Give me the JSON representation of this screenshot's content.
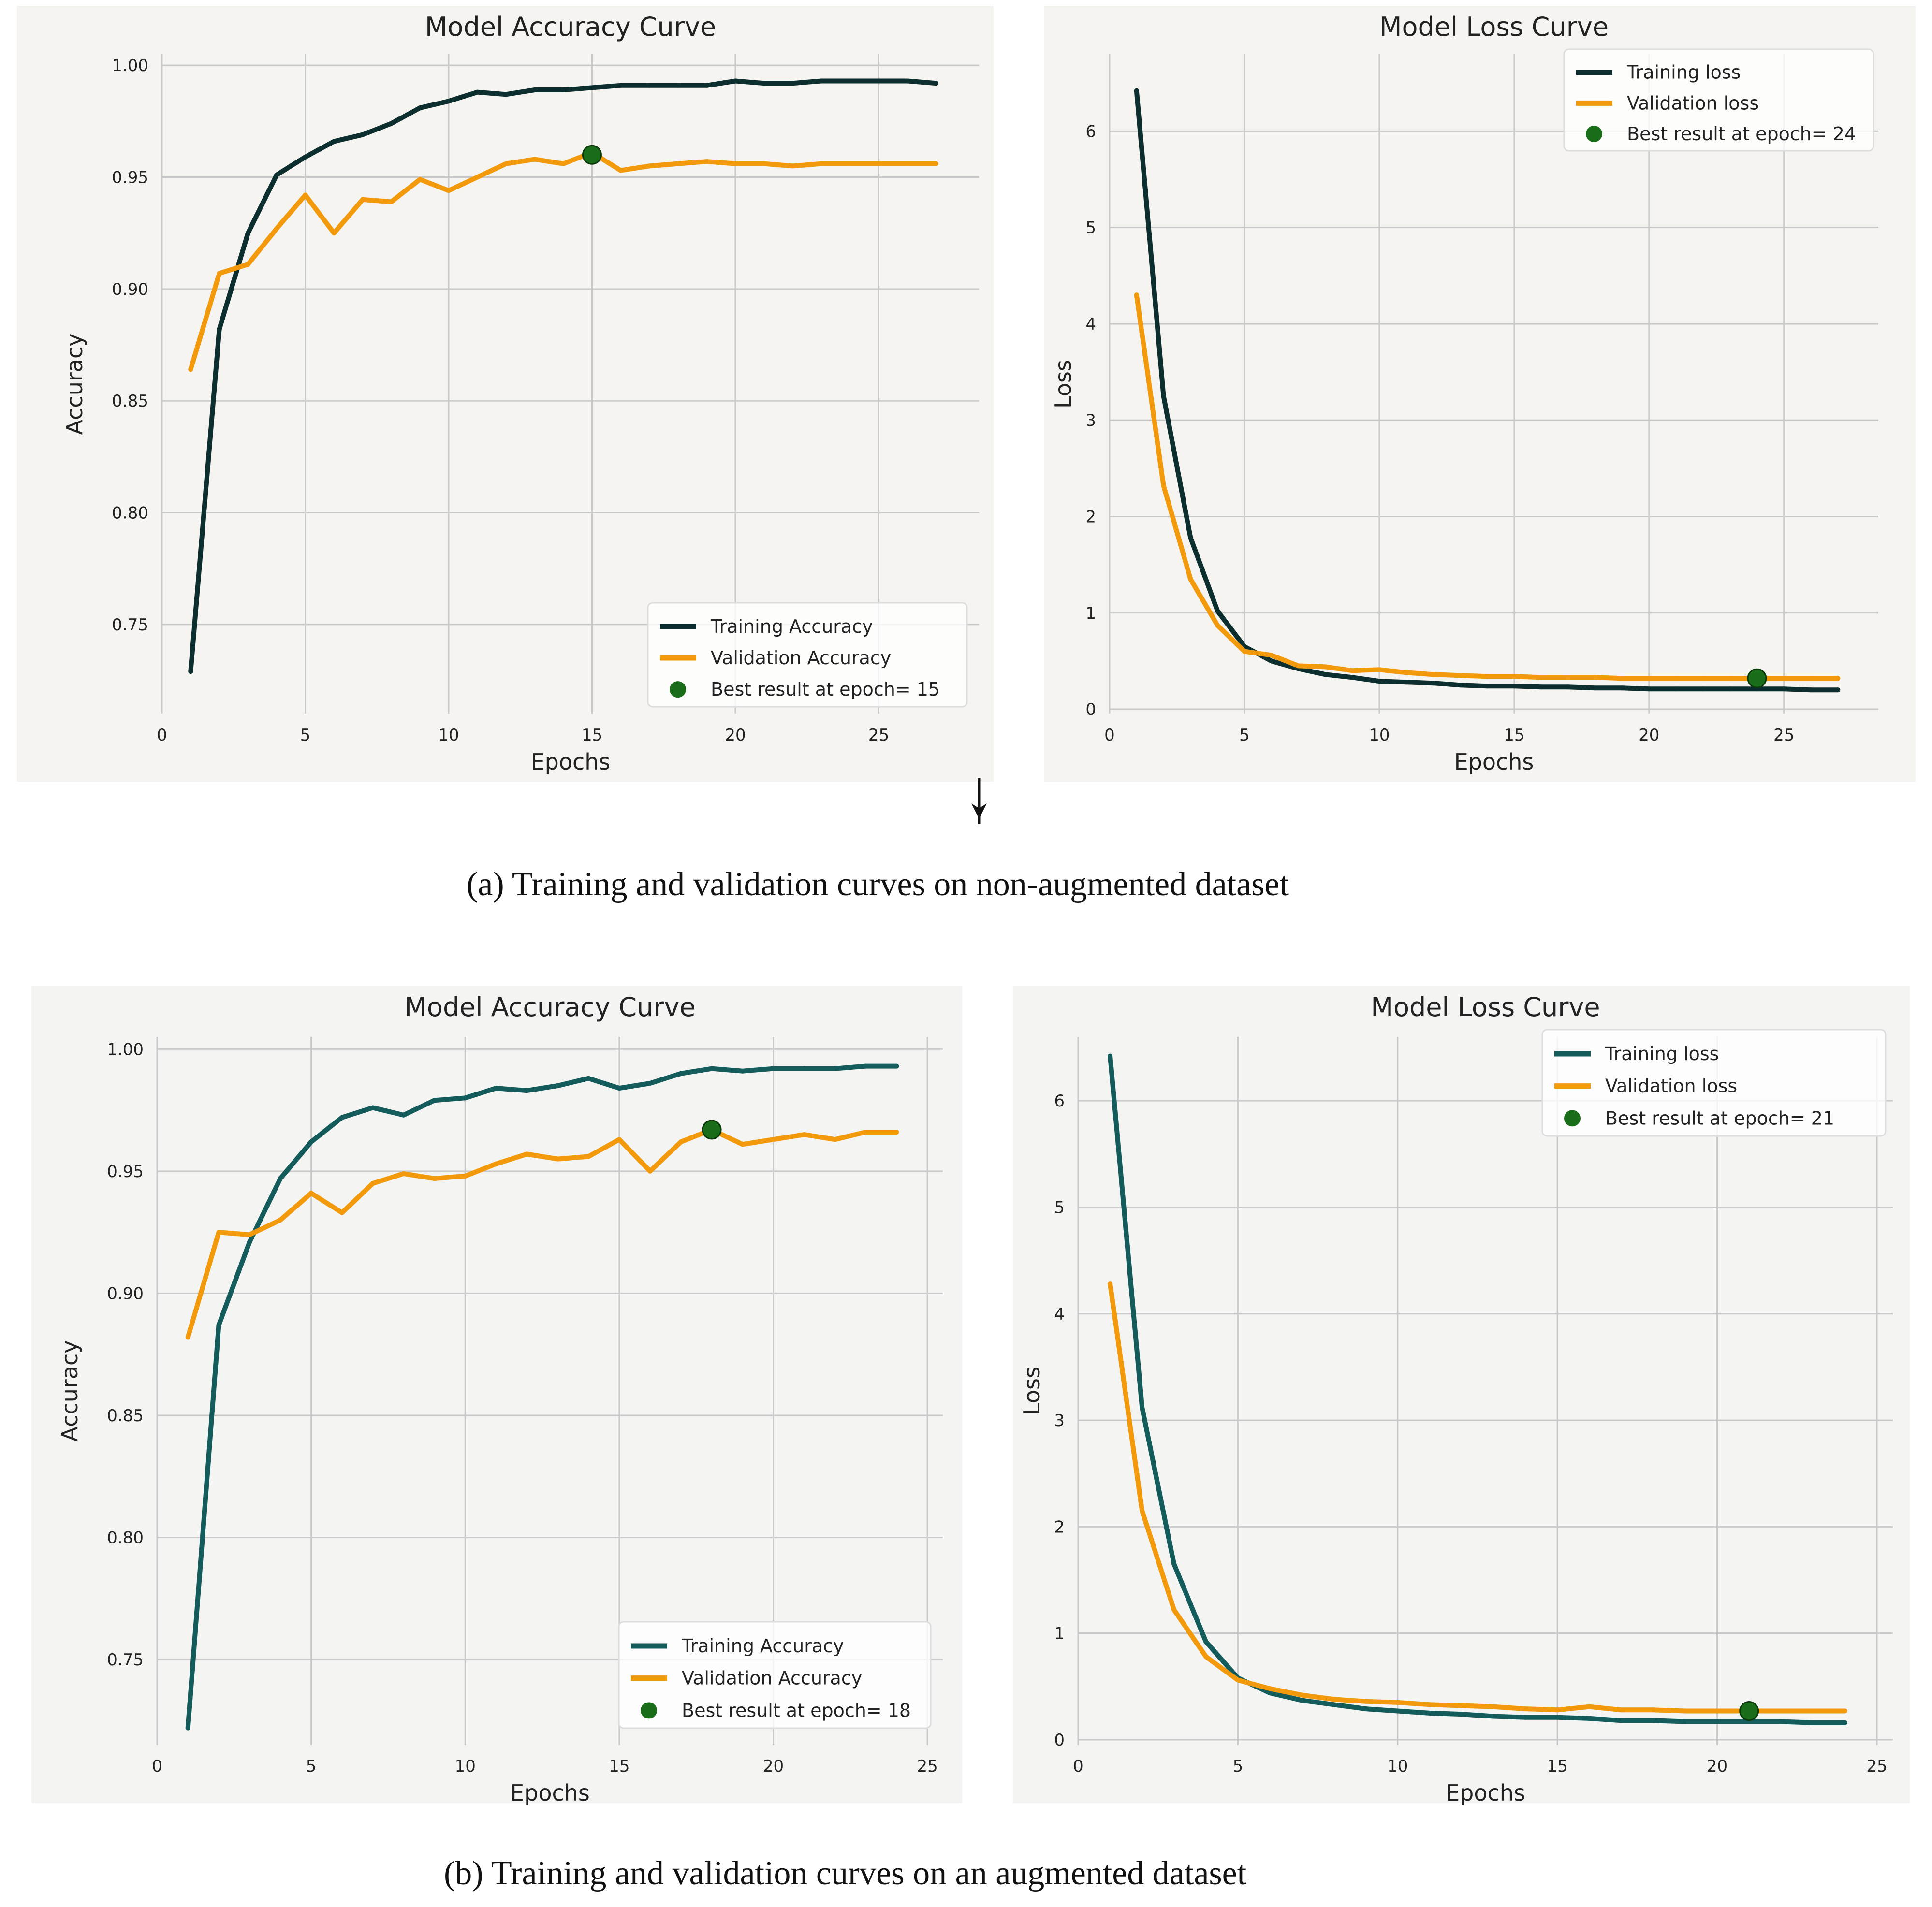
{
  "captions": {
    "a": "(a)  Training and validation curves  on non-augmented dataset",
    "b": "(b)  Training and validation curves on an augmented dataset"
  },
  "colors": {
    "panel_bg": "#f5f4f0",
    "grid": "#c9c9c9",
    "training_a": "#0d2e2e",
    "training_b": "#145c5c",
    "validation": "#f29a0c",
    "best": "#1a6e1a"
  },
  "icons": {
    "down_arrow": "arrow-down-icon"
  },
  "chart_data": [
    {
      "id": "acc_a",
      "type": "line",
      "title": "Model Accuracy Curve",
      "xlabel": "Epochs",
      "ylabel": "Accuracy",
      "xlim": [
        0,
        28.5
      ],
      "ylim": [
        0.71,
        1.005
      ],
      "xticks": [
        0,
        5,
        10,
        15,
        20,
        25
      ],
      "yticks": [
        0.75,
        0.8,
        0.85,
        0.9,
        0.95,
        1.0
      ],
      "ytick_decimals": 2,
      "legend_position": "bottom-right",
      "grid": true,
      "series": [
        {
          "name": "Training Accuracy",
          "color": "#0d2e2e",
          "x": [
            1,
            2,
            3,
            4,
            5,
            6,
            7,
            8,
            9,
            10,
            11,
            12,
            13,
            14,
            15,
            16,
            17,
            18,
            19,
            20,
            21,
            22,
            23,
            24,
            25,
            26,
            27
          ],
          "values": [
            0.729,
            0.882,
            0.925,
            0.951,
            0.959,
            0.966,
            0.969,
            0.974,
            0.981,
            0.984,
            0.988,
            0.987,
            0.989,
            0.989,
            0.99,
            0.991,
            0.991,
            0.991,
            0.991,
            0.993,
            0.992,
            0.992,
            0.993,
            0.993,
            0.993,
            0.993,
            0.992
          ]
        },
        {
          "name": "Validation Accuracy",
          "color": "#f29a0c",
          "x": [
            1,
            2,
            3,
            4,
            5,
            6,
            7,
            8,
            9,
            10,
            11,
            12,
            13,
            14,
            15,
            16,
            17,
            18,
            19,
            20,
            21,
            22,
            23,
            24,
            25,
            26,
            27
          ],
          "values": [
            0.864,
            0.907,
            0.911,
            0.927,
            0.942,
            0.925,
            0.94,
            0.939,
            0.949,
            0.944,
            0.95,
            0.956,
            0.958,
            0.956,
            0.961,
            0.953,
            0.955,
            0.956,
            0.957,
            0.956,
            0.956,
            0.955,
            0.956,
            0.956,
            0.956,
            0.956,
            0.956
          ]
        }
      ],
      "best_point": {
        "label": "Best result at epoch= 15",
        "x": 15,
        "y": 0.96
      }
    },
    {
      "id": "loss_a",
      "type": "line",
      "title": "Model Loss Curve",
      "xlabel": "Epochs",
      "ylabel": "Loss",
      "xlim": [
        0,
        28.5
      ],
      "ylim": [
        -0.05,
        6.8
      ],
      "xticks": [
        0,
        5,
        10,
        15,
        20,
        25
      ],
      "yticks": [
        0,
        1,
        2,
        3,
        4,
        5,
        6
      ],
      "ytick_decimals": 0,
      "legend_position": "top-right",
      "grid": true,
      "series": [
        {
          "name": "Training loss",
          "color": "#0d2e2e",
          "x": [
            1,
            2,
            3,
            4,
            5,
            6,
            7,
            8,
            9,
            10,
            11,
            12,
            13,
            14,
            15,
            16,
            17,
            18,
            19,
            20,
            21,
            22,
            23,
            24,
            25,
            26,
            27
          ],
          "values": [
            6.42,
            3.25,
            1.78,
            1.02,
            0.65,
            0.5,
            0.42,
            0.36,
            0.33,
            0.29,
            0.28,
            0.27,
            0.25,
            0.24,
            0.24,
            0.23,
            0.23,
            0.22,
            0.22,
            0.21,
            0.21,
            0.21,
            0.21,
            0.21,
            0.21,
            0.2,
            0.2
          ]
        },
        {
          "name": "Validation loss",
          "color": "#f29a0c",
          "x": [
            1,
            2,
            3,
            4,
            5,
            6,
            7,
            8,
            9,
            10,
            11,
            12,
            13,
            14,
            15,
            16,
            17,
            18,
            19,
            20,
            21,
            22,
            23,
            24,
            25,
            26,
            27
          ],
          "values": [
            4.3,
            2.32,
            1.35,
            0.87,
            0.6,
            0.56,
            0.45,
            0.44,
            0.4,
            0.41,
            0.38,
            0.36,
            0.35,
            0.34,
            0.34,
            0.33,
            0.33,
            0.33,
            0.32,
            0.32,
            0.32,
            0.32,
            0.32,
            0.32,
            0.32,
            0.32,
            0.32
          ]
        }
      ],
      "best_point": {
        "label": "Best result at epoch= 24",
        "x": 24,
        "y": 0.32
      }
    },
    {
      "id": "acc_b",
      "type": "line",
      "title": "Model Accuracy Curve",
      "xlabel": "Epochs",
      "ylabel": "Accuracy",
      "xlim": [
        0,
        25.5
      ],
      "ylim": [
        0.715,
        1.005
      ],
      "xticks": [
        0,
        5,
        10,
        15,
        20,
        25
      ],
      "yticks": [
        0.75,
        0.8,
        0.85,
        0.9,
        0.95,
        1.0
      ],
      "ytick_decimals": 2,
      "legend_position": "bottom-right",
      "grid": true,
      "series": [
        {
          "name": "Training Accuracy",
          "color": "#145c5c",
          "x": [
            1,
            2,
            3,
            4,
            5,
            6,
            7,
            8,
            9,
            10,
            11,
            12,
            13,
            14,
            15,
            16,
            17,
            18,
            19,
            20,
            21,
            22,
            23,
            24
          ],
          "values": [
            0.722,
            0.887,
            0.921,
            0.947,
            0.962,
            0.972,
            0.976,
            0.973,
            0.979,
            0.98,
            0.984,
            0.983,
            0.985,
            0.988,
            0.984,
            0.986,
            0.99,
            0.992,
            0.991,
            0.992,
            0.992,
            0.992,
            0.993,
            0.993
          ]
        },
        {
          "name": "Validation Accuracy",
          "color": "#f29a0c",
          "x": [
            1,
            2,
            3,
            4,
            5,
            6,
            7,
            8,
            9,
            10,
            11,
            12,
            13,
            14,
            15,
            16,
            17,
            18,
            19,
            20,
            21,
            22,
            23,
            24
          ],
          "values": [
            0.882,
            0.925,
            0.924,
            0.93,
            0.941,
            0.933,
            0.945,
            0.949,
            0.947,
            0.948,
            0.953,
            0.957,
            0.955,
            0.956,
            0.963,
            0.95,
            0.962,
            0.967,
            0.961,
            0.963,
            0.965,
            0.963,
            0.966,
            0.966
          ]
        }
      ],
      "best_point": {
        "label": "Best result at epoch= 18",
        "x": 18,
        "y": 0.967
      }
    },
    {
      "id": "loss_b",
      "type": "line",
      "title": "Model Loss Curve",
      "xlabel": "Epochs",
      "ylabel": "Loss",
      "xlim": [
        0,
        25.5
      ],
      "ylim": [
        -0.05,
        6.6
      ],
      "xticks": [
        0,
        5,
        10,
        15,
        20,
        25
      ],
      "yticks": [
        0,
        1,
        2,
        3,
        4,
        5,
        6
      ],
      "ytick_decimals": 0,
      "legend_position": "top-right",
      "grid": true,
      "series": [
        {
          "name": "Training loss",
          "color": "#145c5c",
          "x": [
            1,
            2,
            3,
            4,
            5,
            6,
            7,
            8,
            9,
            10,
            11,
            12,
            13,
            14,
            15,
            16,
            17,
            18,
            19,
            20,
            21,
            22,
            23,
            24
          ],
          "values": [
            6.42,
            3.12,
            1.65,
            0.92,
            0.58,
            0.44,
            0.37,
            0.33,
            0.29,
            0.27,
            0.25,
            0.24,
            0.22,
            0.21,
            0.21,
            0.2,
            0.18,
            0.18,
            0.17,
            0.17,
            0.17,
            0.17,
            0.16,
            0.16
          ]
        },
        {
          "name": "Validation loss",
          "color": "#f29a0c",
          "x": [
            1,
            2,
            3,
            4,
            5,
            6,
            7,
            8,
            9,
            10,
            11,
            12,
            13,
            14,
            15,
            16,
            17,
            18,
            19,
            20,
            21,
            22,
            23,
            24
          ],
          "values": [
            4.28,
            2.15,
            1.22,
            0.78,
            0.56,
            0.48,
            0.42,
            0.38,
            0.36,
            0.35,
            0.33,
            0.32,
            0.31,
            0.29,
            0.28,
            0.31,
            0.28,
            0.28,
            0.27,
            0.27,
            0.27,
            0.27,
            0.27,
            0.27
          ]
        }
      ],
      "best_point": {
        "label": "Best result at epoch= 21",
        "x": 21,
        "y": 0.27
      }
    }
  ]
}
